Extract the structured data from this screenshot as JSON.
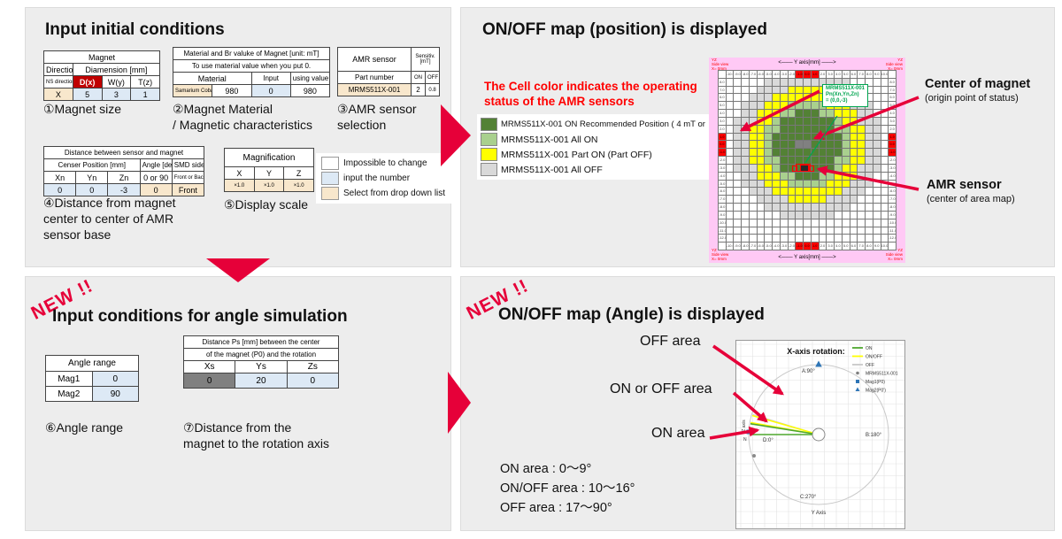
{
  "colors": {
    "red_arrow": "#e60039",
    "table_red": "#c00000",
    "input_blue": "#dde9f5",
    "dropdown_tan": "#f8e7cc",
    "fixed_gray": "#808080",
    "dark_green": "#538135",
    "light_green": "#a9d08e",
    "yellow": "#ffff00",
    "off_gray": "#d9d9d9",
    "pink": "#ffc9f5",
    "green_anno": "#00a550",
    "chart_on": "#4ea72e",
    "chart_onoff": "#ffff00",
    "chart_off": "#c9c9c9",
    "marker_blue": "#2e75b6"
  },
  "top_left": {
    "title": "Input initial conditions",
    "magnet_table": {
      "title": "Magnet",
      "row2": [
        "Direction",
        "Diamension [mm]"
      ],
      "headers": [
        "NS direction",
        "D(x)",
        "W(y)",
        "T(z)"
      ],
      "values": [
        "X",
        "5",
        "3",
        "1"
      ]
    },
    "material_table": {
      "header1": "Material and Br valuke of Magnet [unit: mT]",
      "header2": "To use material value when you put 0.",
      "cols": [
        "Material",
        "Input",
        "using value"
      ],
      "values": [
        "Samarium Cobalt(Mid)",
        "980",
        "0",
        "980"
      ]
    },
    "amr_table": {
      "name": "AMR sensor",
      "sens1": "Sensitiv.",
      "sens2": "[mT]",
      "cols": [
        "Part number",
        "ON",
        "OFF"
      ],
      "values": [
        "MRMS511X-001",
        "2",
        "0.8"
      ]
    },
    "distance_table": {
      "title": "Distance between sensor and magnet",
      "group_headers": [
        "Censer Position [mm]",
        "Angle [deg]",
        "SMD side"
      ],
      "headers": [
        "Xn",
        "Yn",
        "Zn",
        "0 or 90",
        "Front or Back"
      ],
      "values": [
        "0",
        "0",
        "-3",
        "0",
        "Front"
      ]
    },
    "magnification_table": {
      "title": "Magnification",
      "headers": [
        "X",
        "Y",
        "Z"
      ],
      "values": [
        "×1.0",
        "×1.0",
        "×1.0"
      ]
    },
    "cell_legend": [
      {
        "color": "#ffffff",
        "label": "Impossible to change"
      },
      {
        "color": "#dde9f5",
        "label": "input the number"
      },
      {
        "color": "#f8e7cc",
        "label": "Select from drop down list"
      }
    ],
    "captions": {
      "c1": "①Magnet size",
      "c2a": "②Magnet Material",
      "c2b": "/ Magnetic characteristics",
      "c3a": "③AMR sensor",
      "c3b": "selection",
      "c4a": "④Distance from magnet",
      "c4b": "center to center of AMR",
      "c4c": "sensor base",
      "c5": "⑤Display scale"
    }
  },
  "top_right": {
    "title": "ON/OFF map (position) is displayed",
    "note_line1": "The Cell color indicates the operating",
    "note_line2": "status of the AMR sensors",
    "status_legend": [
      {
        "color": "#538135",
        "label": "MRMS511X-001 ON Recommended Position ( 4 mT or"
      },
      {
        "color": "#a9d08e",
        "label": "MRMS511X-001 All ON"
      },
      {
        "color": "#ffff00",
        "label": "MRMS511X-001 Part ON (Part OFF)"
      },
      {
        "color": "#d9d9d9",
        "label": "MRMS511X-001 All OFF"
      }
    ],
    "callout_magnet_title": "Center of magnet",
    "callout_magnet_sub": "(origin point of status)",
    "callout_sensor_title": "AMR sensor",
    "callout_sensor_sub": "(center of area map)",
    "map": {
      "corner_lines": [
        "YZ",
        "Side view",
        "X= 0mm"
      ],
      "y_axis_label": "<───  Y axis[mm]  ───>",
      "z_axis_label": "<───  Z axis[mm]  ───>",
      "grid": 21,
      "col_min": -10,
      "row_max": 8,
      "red_ticks": [
        -1,
        0,
        1
      ],
      "rings": [
        {
          "r": 4.35,
          "color_key": "dark_green"
        },
        {
          "r": 5.6,
          "color_key": "light_green"
        },
        {
          "r": 7.6,
          "color_key": "yellow"
        },
        {
          "r": 9.7,
          "color_key": "off_gray"
        }
      ],
      "default_color": "#ffffff",
      "ring_center": {
        "row": 8,
        "col": 10
      },
      "magnet_cells": [
        [
          8,
          9
        ],
        [
          8,
          10
        ]
      ],
      "sensor": {
        "row": 11,
        "col": 9,
        "span": 2
      },
      "annotation": [
        "MRMS511X-001",
        "Pn(Xn,Yn,Zn)",
        "= (0,0,-3)"
      ]
    }
  },
  "bottom_left": {
    "badge": "NEW !!",
    "title": "Input conditions for angle simulation",
    "angle_table": {
      "title": "Angle range",
      "rows": [
        [
          "Mag1",
          "0"
        ],
        [
          "Mag2",
          "90"
        ]
      ]
    },
    "ps_table": {
      "header1": "Distance Ps [mm] between the center",
      "header2": "of the magnet (P0) and the rotation",
      "headers": [
        "Xs",
        "Ys",
        "Zs"
      ],
      "values": [
        "0",
        "20",
        "0"
      ]
    },
    "captions": {
      "c6": "⑥Angle range",
      "c7a": "⑦Distance from the",
      "c7b": "magnet to the rotation axis"
    }
  },
  "bottom_right": {
    "badge": "NEW !!",
    "title": "ON/OFF map (Angle) is displayed",
    "area_labels": {
      "off": "OFF area",
      "onoff": "ON or OFF area",
      "on": "ON area"
    },
    "summary": [
      "ON area :  0～9°",
      "ON/OFF area : 10～16°",
      "OFF area :  17～90°"
    ],
    "chart": {
      "title": "X-axis rotation:",
      "on_from": 0,
      "on_to": 9,
      "onoff_from": 10,
      "onoff_to": 16,
      "off_from": 17,
      "off_to": 90,
      "legend": [
        {
          "label": "ON",
          "swatch": "line",
          "color": "#4ea72e"
        },
        {
          "label": "ON/OFF",
          "swatch": "line",
          "color": "#ffff00"
        },
        {
          "label": "OFF",
          "swatch": "line",
          "color": "#c9c9c9"
        },
        {
          "label": "MRMS511X-001",
          "swatch": "dot",
          "color": "#7f7f7f"
        },
        {
          "label": "Mag1(P0)",
          "swatch": "square",
          "color": "#2e75b6"
        },
        {
          "label": "Mag2(P0')",
          "swatch": "triangle",
          "color": "#2e75b6"
        }
      ],
      "angle_labels": {
        "top": "A:90°",
        "right": "B:180°",
        "bottom": "C:270°",
        "left": "D:0°"
      },
      "y_axis": "Y Axis",
      "z_axis": "Z axis",
      "pole": "N"
    }
  }
}
